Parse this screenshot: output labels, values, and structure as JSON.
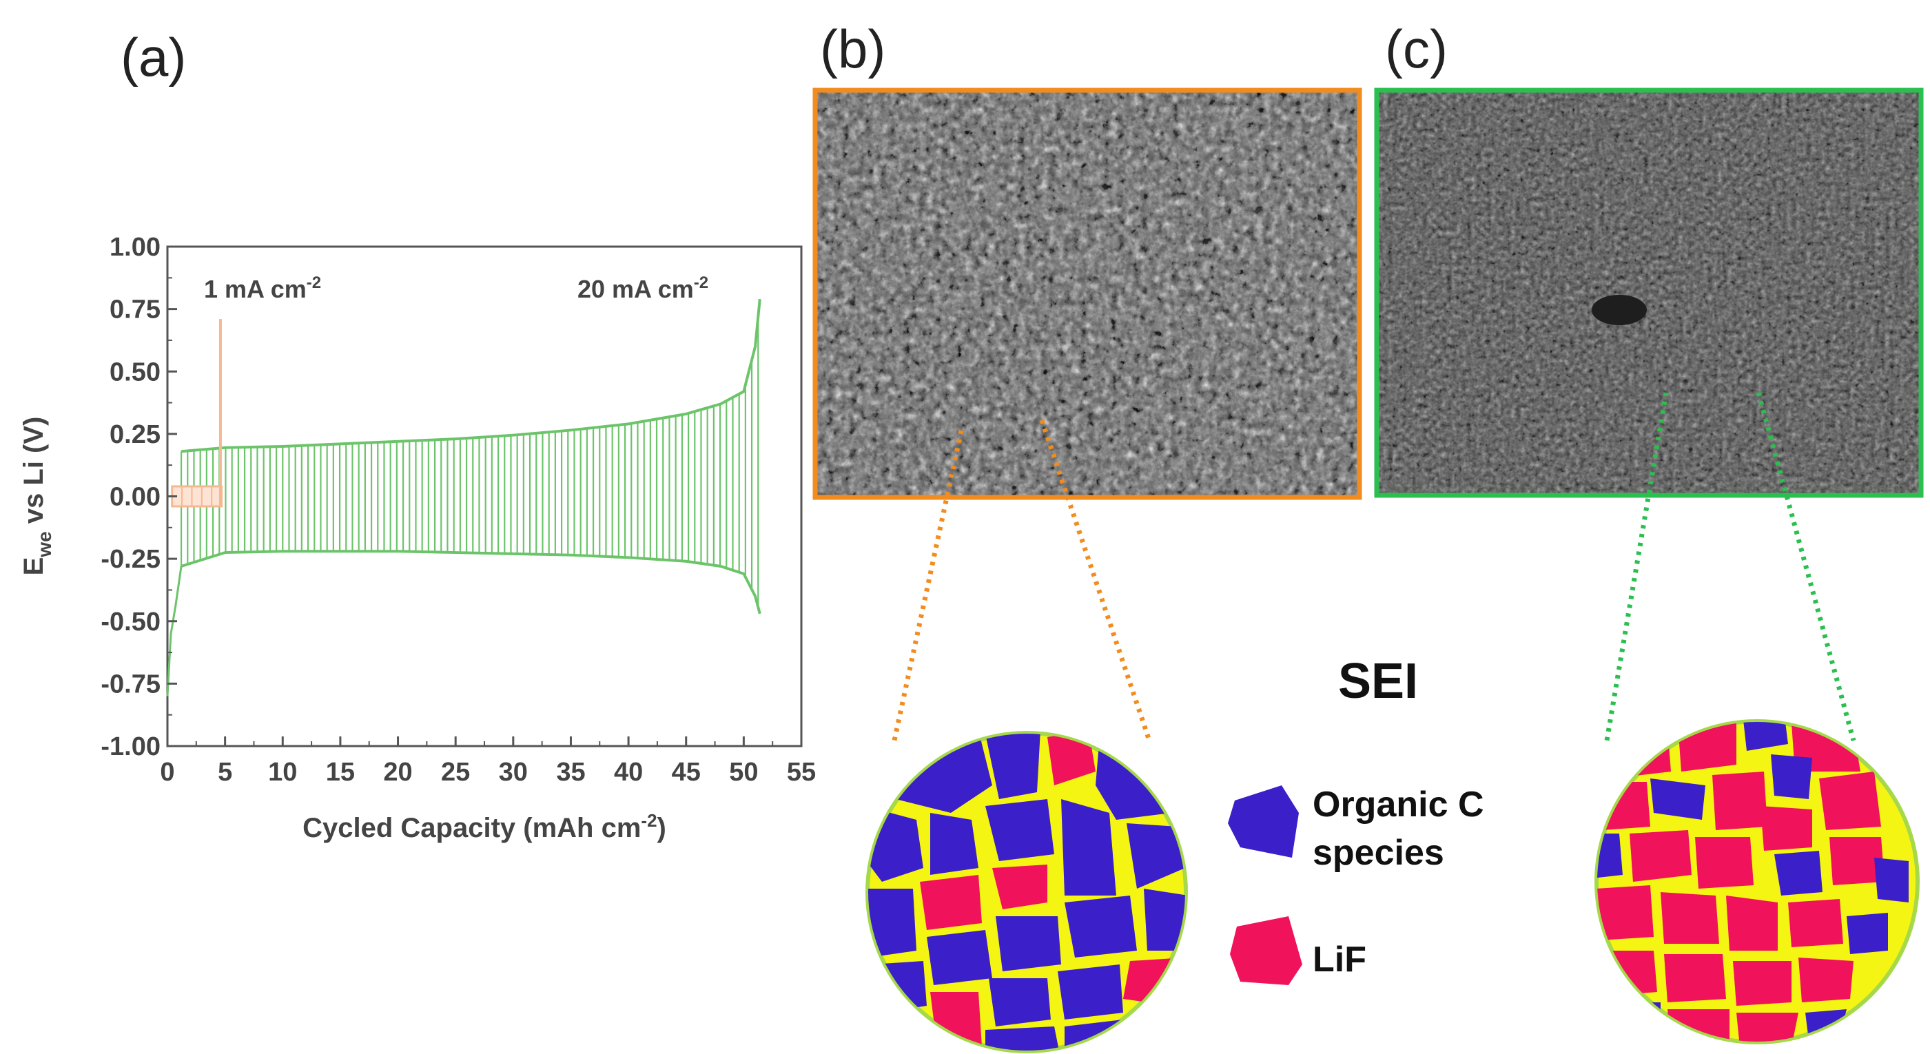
{
  "panels": {
    "a": "(a)",
    "b": "(b)",
    "c": "(c)"
  },
  "chart_data": {
    "type": "line",
    "title": "",
    "xlabel": "Cycled Capacity (mAh cm",
    "xlabel_sup": "-2",
    "xlabel_close": ")",
    "ylabel_main": "E",
    "ylabel_sub": "we",
    "ylabel_rest": " vs Li (V)",
    "xlim": [
      0,
      55
    ],
    "ylim": [
      -1.0,
      1.0
    ],
    "x_ticks": [
      "0",
      "5",
      "10",
      "15",
      "20",
      "25",
      "30",
      "35",
      "40",
      "45",
      "50",
      "55"
    ],
    "y_ticks": [
      "-1.00",
      "-0.75",
      "-0.50",
      "-0.25",
      "0.00",
      "0.25",
      "0.50",
      "0.75",
      "1.00"
    ],
    "grid": false,
    "annotations": [
      {
        "text": "1 mA cm",
        "sup": "-2"
      },
      {
        "text": "20 mA cm",
        "sup": "-2"
      }
    ],
    "series": [
      {
        "color": "#f4b993",
        "upper_envelope": {
          "x": [
            0.4,
            4.7
          ],
          "y": [
            0.04,
            0.04
          ]
        },
        "lower_envelope": {
          "x": [
            0.4,
            4.7
          ],
          "y": [
            -0.04,
            -0.04
          ]
        },
        "spike": {
          "x": 4.6,
          "y": 0.71
        },
        "cycle_count_shown": 5
      },
      {
        "color": "#6cc46a",
        "upper_envelope": {
          "x": [
            1.2,
            5,
            10,
            15,
            20,
            25,
            30,
            35,
            40,
            45,
            48,
            50,
            51,
            51.4
          ],
          "y": [
            0.18,
            0.195,
            0.2,
            0.21,
            0.22,
            0.23,
            0.245,
            0.265,
            0.29,
            0.33,
            0.37,
            0.42,
            0.6,
            0.79
          ]
        },
        "lower_envelope": {
          "x": [
            0,
            0.3,
            0.7,
            1.2,
            5,
            10,
            15,
            20,
            25,
            30,
            35,
            40,
            45,
            48,
            50,
            51,
            51.4
          ],
          "y": [
            -0.8,
            -0.55,
            -0.44,
            -0.28,
            -0.225,
            -0.22,
            -0.22,
            -0.22,
            -0.225,
            -0.23,
            -0.235,
            -0.245,
            -0.26,
            -0.28,
            -0.31,
            -0.4,
            -0.47
          ]
        },
        "cycle_spacing": 0.55
      }
    ]
  },
  "sem_b": {
    "border_color": "#f28c1e"
  },
  "sem_c": {
    "border_color": "#2bbf4f"
  },
  "schematic": {
    "title": "SEI",
    "legend": [
      {
        "label_line1": "Organic C",
        "label_line2": "species",
        "color": "#3b1fc9"
      },
      {
        "label_line1": "LiF",
        "label_line2": "",
        "color": "#f0125a"
      }
    ],
    "matrix_color": "#f5f514",
    "rim_color": "#a6d94a"
  }
}
